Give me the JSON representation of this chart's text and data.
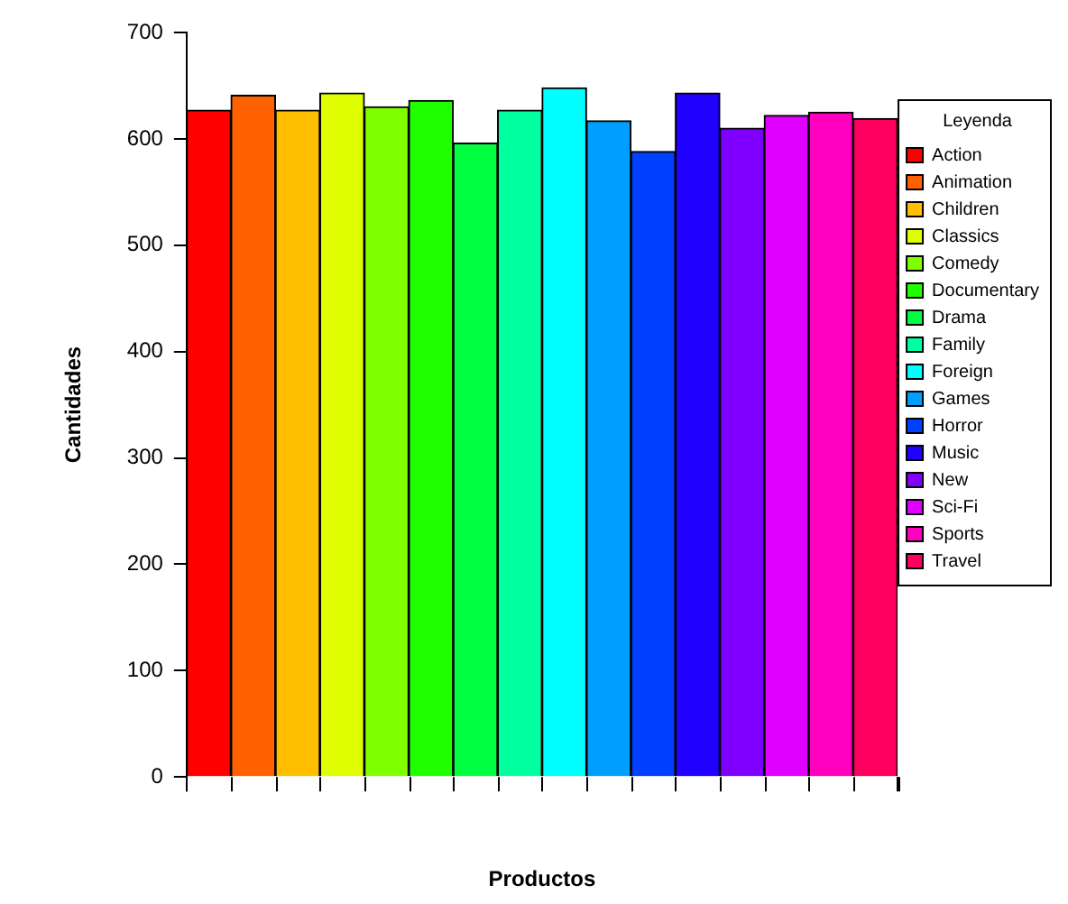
{
  "chart_data": {
    "type": "bar",
    "xlabel": "Productos",
    "ylabel": "Cantidades",
    "legend_title": "Leyenda",
    "legend": "right",
    "categories": [
      null
    ],
    "series": [
      {
        "name": "Action",
        "color": "#ff0000",
        "values": [
          627
        ]
      },
      {
        "name": "Animation",
        "color": "#ff6000",
        "values": [
          641
        ]
      },
      {
        "name": "Children",
        "color": "#ffbf00",
        "values": [
          627
        ]
      },
      {
        "name": "Classics",
        "color": "#dfff00",
        "values": [
          643
        ]
      },
      {
        "name": "Comedy",
        "color": "#80ff00",
        "values": [
          630
        ]
      },
      {
        "name": "Documentary",
        "color": "#20ff00",
        "values": [
          636
        ]
      },
      {
        "name": "Drama",
        "color": "#00ff40",
        "values": [
          596
        ]
      },
      {
        "name": "Family",
        "color": "#00ff9f",
        "values": [
          627
        ]
      },
      {
        "name": "Foreign",
        "color": "#00ffff",
        "values": [
          648
        ]
      },
      {
        "name": "Games",
        "color": "#009fff",
        "values": [
          617
        ]
      },
      {
        "name": "Horror",
        "color": "#0040ff",
        "values": [
          588
        ]
      },
      {
        "name": "Music",
        "color": "#2000ff",
        "values": [
          643
        ]
      },
      {
        "name": "New",
        "color": "#8000ff",
        "values": [
          610
        ]
      },
      {
        "name": "Sci-Fi",
        "color": "#df00ff",
        "values": [
          622
        ]
      },
      {
        "name": "Sports",
        "color": "#ff00bf",
        "values": [
          625
        ]
      },
      {
        "name": "Travel",
        "color": "#ff0060",
        "values": [
          619
        ]
      }
    ],
    "ylim": [
      0,
      700
    ],
    "yticks": [
      0,
      100,
      200,
      300,
      400,
      500,
      600,
      700
    ],
    "grid": false,
    "tick_labels": "y"
  }
}
